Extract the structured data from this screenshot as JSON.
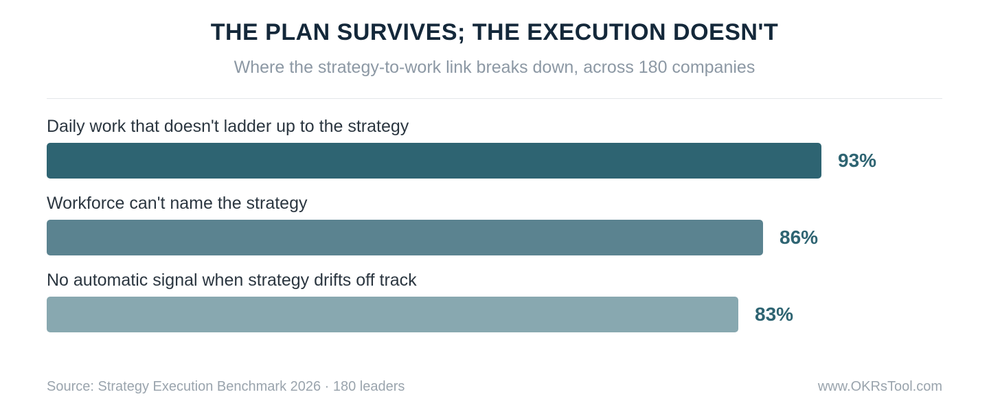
{
  "header": {
    "title": "THE PLAN SURVIVES; THE EXECUTION DOESN'T",
    "subtitle": "Where the strategy-to-work link breaks down, across 180 companies"
  },
  "chart_data": {
    "type": "bar",
    "orientation": "horizontal",
    "categories": [
      "Daily work that doesn't ladder up to the strategy",
      "Workforce can't name the strategy",
      "No automatic signal when strategy drifts off track"
    ],
    "values": [
      93,
      86,
      83
    ],
    "value_labels": [
      "93%",
      "86%",
      "83%"
    ],
    "unit": "%",
    "xlim": [
      0,
      100
    ],
    "grid": false,
    "legend": "none",
    "colors": [
      "#2e6472",
      "#5b8390",
      "#88a8b0"
    ]
  },
  "footer": {
    "source": "Source: Strategy Execution Benchmark 2026 · 180 leaders",
    "site": "www.OKRsTool.com"
  }
}
